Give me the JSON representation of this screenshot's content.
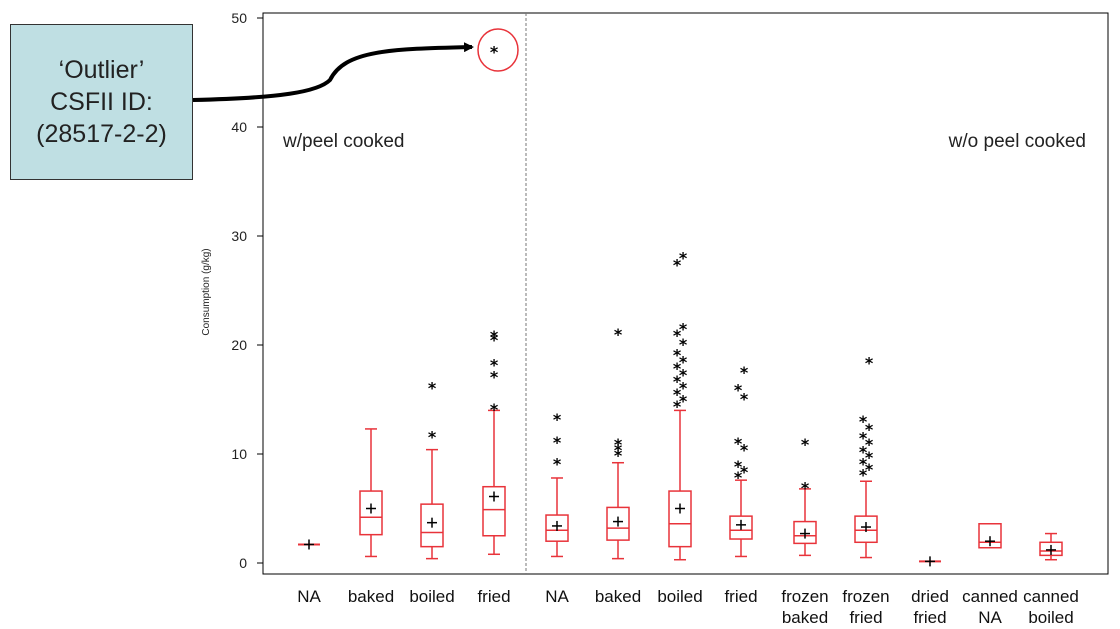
{
  "callout": {
    "line1": "‘Outlier’",
    "line2": "CSFII ID:",
    "line3": "(28517-2-2)"
  },
  "colors": {
    "box": "#e8333a",
    "callout_bg": "#bfdfe3",
    "marker": "#000000",
    "divider": "#777777"
  },
  "chart_data": {
    "type": "box",
    "ylabel": "Consumption (g/kg)",
    "ylim": [
      0,
      50
    ],
    "yticks": [
      0,
      10,
      20,
      30,
      40,
      50
    ],
    "group_labels": [
      "w/peel cooked",
      "w/o peel cooked"
    ],
    "categories": [
      {
        "label": [
          "NA"
        ],
        "group": "w/peel cooked",
        "min": 1.7,
        "q1": 1.7,
        "median": 1.7,
        "q3": 1.7,
        "max": 1.7,
        "mean": 1.7,
        "outliers": []
      },
      {
        "label": [
          "baked"
        ],
        "group": "w/peel cooked",
        "min": 0.6,
        "q1": 2.6,
        "median": 4.2,
        "q3": 6.6,
        "max": 12.3,
        "mean": 5.0,
        "outliers": []
      },
      {
        "label": [
          "boiled"
        ],
        "group": "w/peel cooked",
        "min": 0.4,
        "q1": 1.5,
        "median": 2.8,
        "q3": 5.4,
        "max": 10.4,
        "mean": 3.7,
        "outliers": [
          11.7,
          16.2
        ]
      },
      {
        "label": [
          "fried"
        ],
        "group": "w/peel cooked",
        "min": 0.8,
        "q1": 2.5,
        "median": 4.9,
        "q3": 7.0,
        "max": 14.0,
        "mean": 6.1,
        "outliers": [
          14.2,
          17.2,
          18.3,
          20.6,
          20.9,
          47.0
        ]
      },
      {
        "label": [
          "NA"
        ],
        "group": "w/o peel cooked",
        "min": 0.6,
        "q1": 2.0,
        "median": 3.0,
        "q3": 4.4,
        "max": 7.8,
        "mean": 3.4,
        "outliers": [
          9.2,
          11.2,
          13.3
        ]
      },
      {
        "label": [
          "baked"
        ],
        "group": "w/o peel cooked",
        "min": 0.4,
        "q1": 2.1,
        "median": 3.2,
        "q3": 5.1,
        "max": 9.2,
        "mean": 3.8,
        "outliers": [
          10.0,
          10.5,
          11.0,
          21.1
        ]
      },
      {
        "label": [
          "boiled"
        ],
        "group": "w/o peel cooked",
        "min": 0.3,
        "q1": 1.5,
        "median": 3.6,
        "q3": 6.6,
        "max": 14.0,
        "mean": 5.0,
        "outliers": [
          14.5,
          15.0,
          15.6,
          16.2,
          16.8,
          17.4,
          18.0,
          18.6,
          19.2,
          20.2,
          21.0,
          21.6,
          27.5,
          28.1
        ]
      },
      {
        "label": [
          "fried"
        ],
        "group": "w/o peel cooked",
        "min": 0.6,
        "q1": 2.2,
        "median": 3.0,
        "q3": 4.3,
        "max": 7.6,
        "mean": 3.5,
        "outliers": [
          8.0,
          8.5,
          9.0,
          10.5,
          11.1,
          15.2,
          16.0,
          17.6
        ]
      },
      {
        "label": [
          "frozen",
          "baked"
        ],
        "group": "w/o peel cooked",
        "min": 0.7,
        "q1": 1.8,
        "median": 2.5,
        "q3": 3.8,
        "max": 6.8,
        "mean": 2.7,
        "outliers": [
          7.0,
          11.0
        ]
      },
      {
        "label": [
          "frozen",
          "fried"
        ],
        "group": "w/o peel cooked",
        "min": 0.5,
        "q1": 1.9,
        "median": 3.0,
        "q3": 4.3,
        "max": 7.5,
        "mean": 3.3,
        "outliers": [
          8.2,
          8.7,
          9.2,
          9.8,
          10.3,
          11.0,
          11.6,
          12.4,
          13.1,
          18.5
        ]
      },
      {
        "label": [
          "dried",
          "fried"
        ],
        "group": "w/o peel cooked",
        "min": 0.15,
        "q1": 0.15,
        "median": 0.15,
        "q3": 0.15,
        "max": 0.15,
        "mean": 0.15,
        "outliers": []
      },
      {
        "label": [
          "canned",
          "NA"
        ],
        "group": "w/o peel cooked",
        "min": 1.4,
        "q1": 1.4,
        "median": 1.9,
        "q3": 3.6,
        "max": 3.6,
        "mean": 2.0,
        "outliers": []
      },
      {
        "label": [
          "canned",
          "boiled"
        ],
        "group": "w/o peel cooked",
        "min": 0.3,
        "q1": 0.7,
        "median": 1.1,
        "q3": 1.9,
        "max": 2.7,
        "mean": 1.2,
        "outliers": []
      }
    ]
  }
}
